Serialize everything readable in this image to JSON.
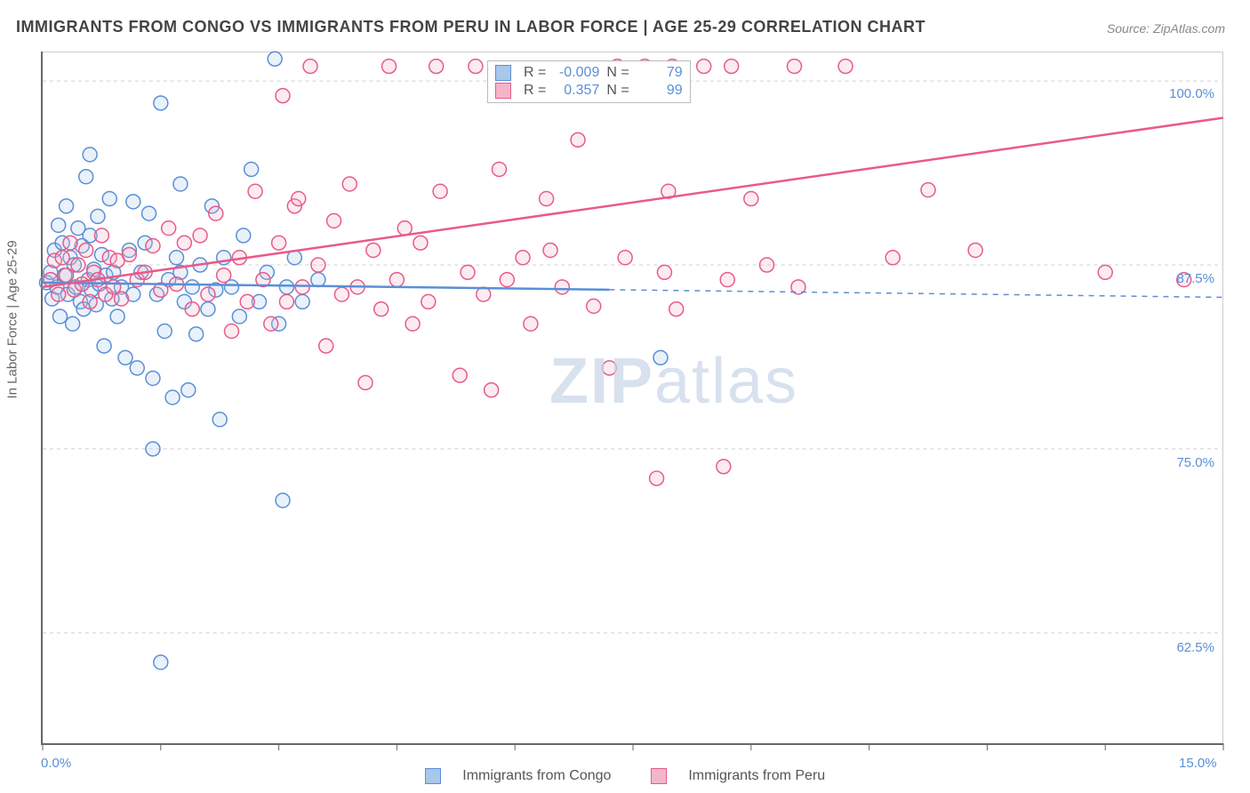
{
  "title": "IMMIGRANTS FROM CONGO VS IMMIGRANTS FROM PERU IN LABOR FORCE | AGE 25-29 CORRELATION CHART",
  "source": "Source: ZipAtlas.com",
  "ylabel": "In Labor Force | Age 25-29",
  "watermark_bold": "ZIP",
  "watermark_rest": "atlas",
  "chart": {
    "type": "scatter",
    "background_color": "#ffffff",
    "grid_color": "#d0d0d0",
    "axis_color": "#666666",
    "label_color": "#5a8fd6",
    "label_fontsize": 15,
    "xlim": [
      0,
      15
    ],
    "ylim": [
      55,
      102
    ],
    "x_ticks": [
      0,
      1.5,
      3.0,
      4.5,
      6.0,
      7.5,
      9.0,
      10.5,
      12.0,
      13.5,
      15.0
    ],
    "x_tick_labels": {
      "0": "0.0%",
      "15": "15.0%"
    },
    "y_gridlines": [
      62.5,
      75.0,
      87.5,
      100.0
    ],
    "y_tick_labels": {
      "62.5": "62.5%",
      "75.0": "75.0%",
      "87.5": "87.5%",
      "100.0": "100.0%"
    },
    "marker_radius": 8,
    "marker_stroke_width": 1.5,
    "marker_fill_opacity": 0.25,
    "trend_line_width": 2.5
  },
  "series": [
    {
      "name": "Immigrants from Congo",
      "color": "#5a8fd6",
      "fill": "#a9c6eb",
      "R": "-0.009",
      "N": "79",
      "trend": {
        "x0": 0,
        "y0": 86.3,
        "x1": 15,
        "y1": 85.3,
        "solid_until_x": 7.2
      },
      "points": [
        [
          0.05,
          86.3
        ],
        [
          0.1,
          87.0
        ],
        [
          0.12,
          85.2
        ],
        [
          0.15,
          88.5
        ],
        [
          0.18,
          86.0
        ],
        [
          0.2,
          90.2
        ],
        [
          0.22,
          84.0
        ],
        [
          0.25,
          89.0
        ],
        [
          0.28,
          86.8
        ],
        [
          0.3,
          91.5
        ],
        [
          0.32,
          85.5
        ],
        [
          0.35,
          88.0
        ],
        [
          0.38,
          83.5
        ],
        [
          0.4,
          87.5
        ],
        [
          0.42,
          86.0
        ],
        [
          0.45,
          90.0
        ],
        [
          0.48,
          85.0
        ],
        [
          0.5,
          88.8
        ],
        [
          0.52,
          84.5
        ],
        [
          0.55,
          93.5
        ],
        [
          0.58,
          86.5
        ],
        [
          0.6,
          89.5
        ],
        [
          0.62,
          85.8
        ],
        [
          0.65,
          87.2
        ],
        [
          0.68,
          84.8
        ],
        [
          0.7,
          90.8
        ],
        [
          0.72,
          86.2
        ],
        [
          0.75,
          88.2
        ],
        [
          0.78,
          82.0
        ],
        [
          0.8,
          86.8
        ],
        [
          0.85,
          92.0
        ],
        [
          0.88,
          85.2
        ],
        [
          0.9,
          87.0
        ],
        [
          0.95,
          84.0
        ],
        [
          1.0,
          86.0
        ],
        [
          1.05,
          81.2
        ],
        [
          1.1,
          88.5
        ],
        [
          1.15,
          85.5
        ],
        [
          1.2,
          80.5
        ],
        [
          1.25,
          87.0
        ],
        [
          1.3,
          89.0
        ],
        [
          1.35,
          91.0
        ],
        [
          1.4,
          79.8
        ],
        [
          1.45,
          85.5
        ],
        [
          1.5,
          98.5
        ],
        [
          1.55,
          83.0
        ],
        [
          1.6,
          86.5
        ],
        [
          1.65,
          78.5
        ],
        [
          1.7,
          88.0
        ],
        [
          1.75,
          93.0
        ],
        [
          1.8,
          85.0
        ],
        [
          1.85,
          79.0
        ],
        [
          1.9,
          86.0
        ],
        [
          1.95,
          82.8
        ],
        [
          2.0,
          87.5
        ],
        [
          2.1,
          84.5
        ],
        [
          2.15,
          91.5
        ],
        [
          2.2,
          85.8
        ],
        [
          2.25,
          77.0
        ],
        [
          2.3,
          88.0
        ],
        [
          2.4,
          86.0
        ],
        [
          2.5,
          84.0
        ],
        [
          2.55,
          89.5
        ],
        [
          2.65,
          94.0
        ],
        [
          2.75,
          85.0
        ],
        [
          2.85,
          87.0
        ],
        [
          2.95,
          101.5
        ],
        [
          3.0,
          83.5
        ],
        [
          3.05,
          71.5
        ],
        [
          3.1,
          86.0
        ],
        [
          3.2,
          88.0
        ],
        [
          3.3,
          85.0
        ],
        [
          3.5,
          86.5
        ],
        [
          1.4,
          75.0
        ],
        [
          1.5,
          60.5
        ],
        [
          0.6,
          95.0
        ],
        [
          1.15,
          91.8
        ],
        [
          1.75,
          87.0
        ],
        [
          7.85,
          81.2
        ]
      ]
    },
    {
      "name": "Immigrants from Peru",
      "color": "#e85a8a",
      "fill": "#f5b5c8",
      "R": "0.357",
      "N": "99",
      "trend": {
        "x0": 0,
        "y0": 86.0,
        "x1": 15,
        "y1": 97.5,
        "solid_until_x": 15
      },
      "points": [
        [
          0.1,
          86.5
        ],
        [
          0.15,
          87.8
        ],
        [
          0.2,
          85.5
        ],
        [
          0.25,
          88.0
        ],
        [
          0.3,
          86.8
        ],
        [
          0.35,
          89.0
        ],
        [
          0.4,
          85.8
        ],
        [
          0.45,
          87.5
        ],
        [
          0.5,
          86.2
        ],
        [
          0.55,
          88.5
        ],
        [
          0.6,
          85.0
        ],
        [
          0.65,
          87.0
        ],
        [
          0.7,
          86.5
        ],
        [
          0.75,
          89.5
        ],
        [
          0.8,
          85.5
        ],
        [
          0.85,
          88.0
        ],
        [
          0.9,
          86.0
        ],
        [
          0.95,
          87.8
        ],
        [
          1.0,
          85.2
        ],
        [
          1.1,
          88.2
        ],
        [
          1.2,
          86.5
        ],
        [
          1.3,
          87.0
        ],
        [
          1.4,
          88.8
        ],
        [
          1.5,
          85.8
        ],
        [
          1.6,
          90.0
        ],
        [
          1.7,
          86.2
        ],
        [
          1.8,
          89.0
        ],
        [
          1.9,
          84.5
        ],
        [
          2.0,
          89.5
        ],
        [
          2.1,
          85.5
        ],
        [
          2.2,
          91.0
        ],
        [
          2.3,
          86.8
        ],
        [
          2.4,
          83.0
        ],
        [
          2.5,
          88.0
        ],
        [
          2.6,
          85.0
        ],
        [
          2.7,
          92.5
        ],
        [
          2.8,
          86.5
        ],
        [
          2.9,
          83.5
        ],
        [
          3.0,
          89.0
        ],
        [
          3.05,
          99.0
        ],
        [
          3.1,
          85.0
        ],
        [
          3.2,
          91.5
        ],
        [
          3.25,
          92.0
        ],
        [
          3.3,
          86.0
        ],
        [
          3.4,
          101.0
        ],
        [
          3.5,
          87.5
        ],
        [
          3.6,
          82.0
        ],
        [
          3.7,
          90.5
        ],
        [
          3.8,
          85.5
        ],
        [
          3.9,
          93.0
        ],
        [
          4.0,
          86.0
        ],
        [
          4.1,
          79.5
        ],
        [
          4.2,
          88.5
        ],
        [
          4.3,
          84.5
        ],
        [
          4.4,
          101.0
        ],
        [
          4.5,
          86.5
        ],
        [
          4.6,
          90.0
        ],
        [
          4.7,
          83.5
        ],
        [
          4.8,
          89.0
        ],
        [
          4.9,
          85.0
        ],
        [
          5.0,
          101.0
        ],
        [
          5.05,
          92.5
        ],
        [
          5.3,
          80.0
        ],
        [
          5.4,
          87.0
        ],
        [
          5.5,
          101.0
        ],
        [
          5.6,
          85.5
        ],
        [
          5.7,
          79.0
        ],
        [
          5.8,
          94.0
        ],
        [
          5.9,
          86.5
        ],
        [
          6.1,
          88.0
        ],
        [
          6.2,
          83.5
        ],
        [
          6.4,
          92.0
        ],
        [
          6.45,
          88.5
        ],
        [
          6.6,
          86.0
        ],
        [
          6.8,
          96.0
        ],
        [
          7.0,
          84.7
        ],
        [
          7.2,
          80.5
        ],
        [
          7.3,
          101.0
        ],
        [
          7.4,
          88.0
        ],
        [
          7.65,
          101.0
        ],
        [
          7.8,
          73.0
        ],
        [
          7.9,
          87.0
        ],
        [
          7.95,
          92.5
        ],
        [
          8.0,
          101.0
        ],
        [
          8.05,
          84.5
        ],
        [
          8.4,
          101.0
        ],
        [
          8.65,
          73.8
        ],
        [
          8.7,
          86.5
        ],
        [
          8.75,
          101.0
        ],
        [
          9.0,
          92.0
        ],
        [
          9.2,
          87.5
        ],
        [
          9.55,
          101.0
        ],
        [
          9.6,
          86.0
        ],
        [
          10.2,
          101.0
        ],
        [
          10.8,
          88.0
        ],
        [
          11.25,
          92.6
        ],
        [
          11.85,
          88.5
        ],
        [
          13.5,
          87.0
        ],
        [
          14.5,
          86.5
        ]
      ]
    }
  ],
  "top_legend": {
    "R_label": "R =",
    "N_label": "N ="
  },
  "bottom_legend": {
    "series0": "Immigrants from Congo",
    "series1": "Immigrants from Peru"
  }
}
